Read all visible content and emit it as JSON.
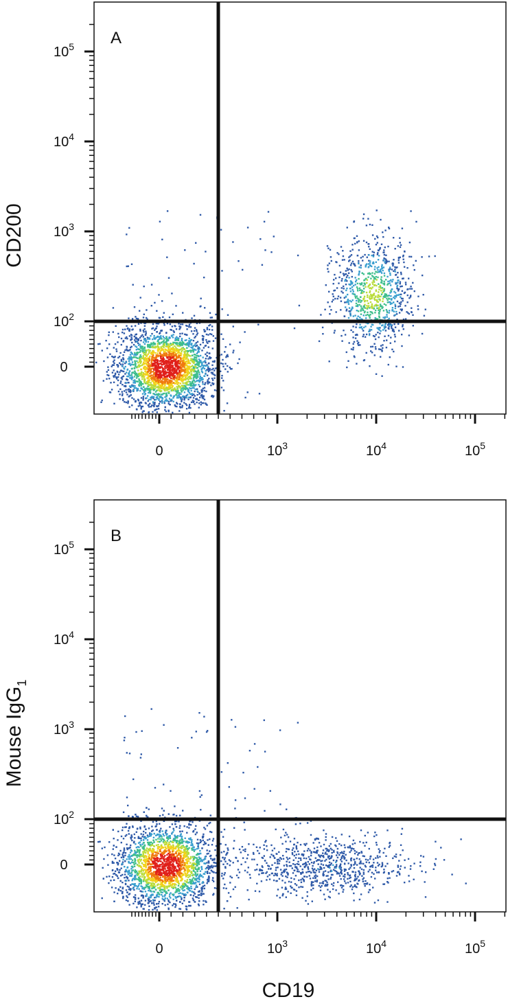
{
  "figure": {
    "xlabel": "CD19"
  },
  "chart_data": [
    {
      "type": "scatter",
      "subtype": "flow-cytometry-density-plot",
      "panel_label": "A",
      "title": "",
      "xlabel": "",
      "ylabel": "CD200",
      "x_scale": "biexponential",
      "y_scale": "biexponential",
      "x_ticks": [
        {
          "value": 0,
          "base": "0",
          "exp": ""
        },
        {
          "value": 1000,
          "base": "10",
          "exp": "3"
        },
        {
          "value": 10000,
          "base": "10",
          "exp": "4"
        },
        {
          "value": 100000,
          "base": "10",
          "exp": "5"
        }
      ],
      "y_ticks": [
        {
          "value": 0,
          "base": "0",
          "exp": ""
        },
        {
          "value": 100,
          "base": "10",
          "exp": "2"
        },
        {
          "value": 1000,
          "base": "10",
          "exp": "3"
        },
        {
          "value": 10000,
          "base": "10",
          "exp": "4"
        },
        {
          "value": 100000,
          "base": "10",
          "exp": "5"
        }
      ],
      "quadrant_gates": {
        "x": 500,
        "y": 100
      },
      "populations": [
        {
          "center": [
            50,
            0
          ],
          "density": "high"
        },
        {
          "center": [
            9000,
            200
          ],
          "density": "medium"
        }
      ],
      "grid": false,
      "legend": "none"
    },
    {
      "type": "scatter",
      "subtype": "flow-cytometry-density-plot",
      "panel_label": "B",
      "title": "",
      "xlabel": "",
      "ylabel": "Mouse IgG",
      "ylabel_sub": "1",
      "x_scale": "biexponential",
      "y_scale": "biexponential",
      "x_ticks": [
        {
          "value": 0,
          "base": "0",
          "exp": ""
        },
        {
          "value": 1000,
          "base": "10",
          "exp": "3"
        },
        {
          "value": 10000,
          "base": "10",
          "exp": "4"
        },
        {
          "value": 100000,
          "base": "10",
          "exp": "5"
        }
      ],
      "y_ticks": [
        {
          "value": 0,
          "base": "0",
          "exp": ""
        },
        {
          "value": 100,
          "base": "10",
          "exp": "2"
        },
        {
          "value": 1000,
          "base": "10",
          "exp": "3"
        },
        {
          "value": 10000,
          "base": "10",
          "exp": "4"
        },
        {
          "value": 100000,
          "base": "10",
          "exp": "5"
        }
      ],
      "quadrant_gates": {
        "x": 500,
        "y": 100
      },
      "populations": [
        {
          "center": [
            50,
            0
          ],
          "density": "high"
        },
        {
          "center": [
            3000,
            0
          ],
          "density": "low"
        }
      ],
      "grid": false,
      "legend": "none"
    }
  ]
}
